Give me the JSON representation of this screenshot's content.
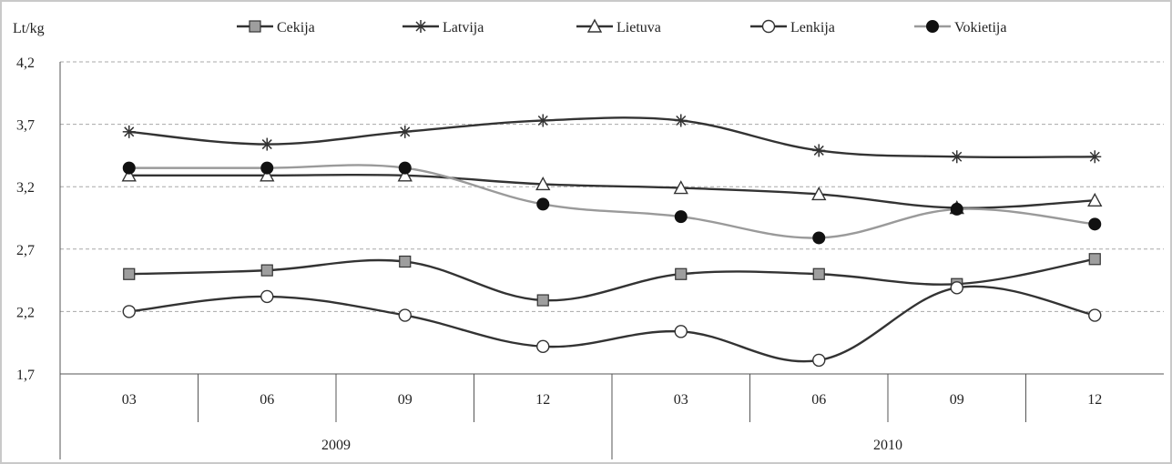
{
  "chart_data": {
    "type": "line",
    "ylabel": "Lt/kg",
    "ylim": [
      1.7,
      4.2
    ],
    "yticks": [
      1.7,
      2.2,
      2.7,
      3.2,
      3.7,
      4.2
    ],
    "ytick_labels": [
      "1,7",
      "2,2",
      "2,7",
      "3,2",
      "3,7",
      "4,2"
    ],
    "categories": [
      "03",
      "06",
      "09",
      "12",
      "03",
      "06",
      "09",
      "12"
    ],
    "groups": [
      {
        "label": "2009",
        "span": 4
      },
      {
        "label": "2010",
        "span": 4
      }
    ],
    "grid": true,
    "legend": "top",
    "series": [
      {
        "name": "Cekija",
        "marker": "square",
        "color": "#333333",
        "values": [
          2.5,
          2.53,
          2.6,
          2.29,
          2.5,
          2.5,
          2.42,
          2.62
        ]
      },
      {
        "name": "Latvija",
        "marker": "star",
        "color": "#333333",
        "values": [
          3.64,
          3.54,
          3.64,
          3.73,
          3.73,
          3.49,
          3.44,
          3.44
        ]
      },
      {
        "name": "Lietuva",
        "marker": "triangle",
        "color": "#333333",
        "values": [
          3.29,
          3.29,
          3.29,
          3.22,
          3.19,
          3.14,
          3.03,
          3.09
        ]
      },
      {
        "name": "Lenkija",
        "marker": "circle",
        "color": "#333333",
        "values": [
          2.2,
          2.32,
          2.17,
          1.92,
          2.04,
          1.81,
          2.39,
          2.17
        ]
      },
      {
        "name": "Vokietija",
        "marker": "dot",
        "color": "#9a9a9a",
        "marker_color": "#111111",
        "values": [
          3.35,
          3.35,
          3.35,
          3.06,
          2.96,
          2.79,
          3.02,
          2.9
        ]
      }
    ]
  }
}
